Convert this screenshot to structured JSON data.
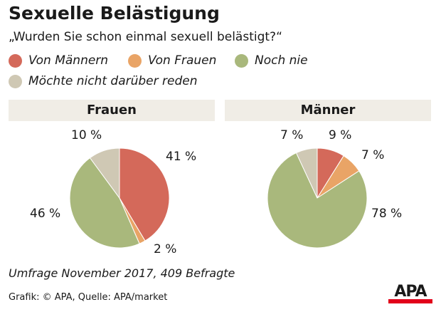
{
  "title": "Sexuelle Belästigung",
  "subtitle": "„Wurden Sie schon einmal sexuell belästigt?“",
  "note": "Umfrage November 2017, 409 Befragte",
  "source": "Grafik: © APA, Quelle: APA/market",
  "logo": "APA",
  "chart_data": [
    {
      "type": "pie",
      "title": "Frauen",
      "categories": [
        "Von Männern",
        "Von Frauen",
        "Noch nie",
        "Möchte nicht darüber reden"
      ],
      "values": [
        41,
        2,
        46,
        10
      ],
      "labels": [
        "41 %",
        "2 %",
        "46 %",
        "10 %"
      ]
    },
    {
      "type": "pie",
      "title": "Männer",
      "categories": [
        "Von Männern",
        "Von Frauen",
        "Noch nie",
        "Möchte nicht darüber reden"
      ],
      "values": [
        9,
        7,
        78,
        7
      ],
      "labels": [
        "9 %",
        "7 %",
        "78 %",
        "7 %"
      ]
    }
  ],
  "legend": [
    {
      "label": "Von Männern",
      "color": "#d4695a"
    },
    {
      "label": "Von Frauen",
      "color": "#e9a466"
    },
    {
      "label": "Noch nie",
      "color": "#a9b87c"
    },
    {
      "label": "Möchte nicht darüber reden",
      "color": "#cfc8b4"
    }
  ]
}
